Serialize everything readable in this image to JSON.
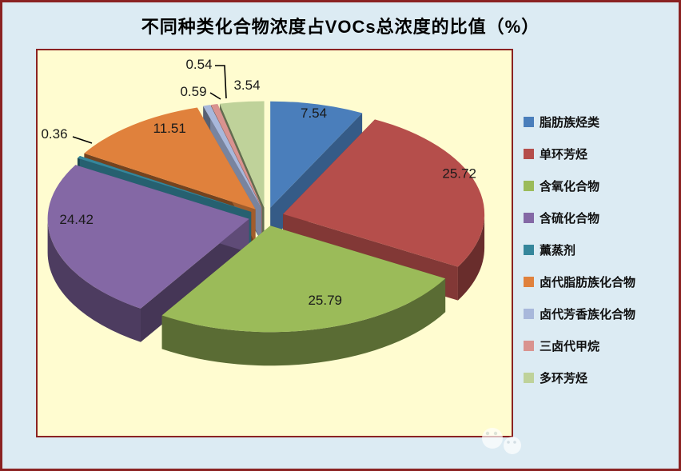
{
  "chart_data": {
    "type": "pie",
    "style": "3d-exploded",
    "title": "不同种类化合物浓度占VOCs总浓度的比值（%）",
    "unit": "%",
    "categories": [
      "脂肪族烃类",
      "单环芳烃",
      "含氧化合物",
      "含硫化合物",
      "薰蒸剂",
      "卤代脂肪族化合物",
      "卤代芳香族化合物",
      "三卤代甲烷",
      "多环芳烃"
    ],
    "values": [
      7.54,
      25.72,
      25.79,
      24.42,
      0.36,
      11.51,
      0.59,
      0.54,
      3.54
    ],
    "colors": [
      "#4A7EBB",
      "#B54E4B",
      "#9BBB59",
      "#8468A5",
      "#35869B",
      "#E0813C",
      "#A8B8DB",
      "#D9938F",
      "#BFD29A"
    ],
    "data_labels_visible": true,
    "legend_position": "right",
    "start_angle_deg": 0,
    "direction": "clockwise",
    "canvas_bg": "#DCEBF3",
    "plot_bg": "#FFFCD0",
    "border_color": "#8B2222"
  }
}
